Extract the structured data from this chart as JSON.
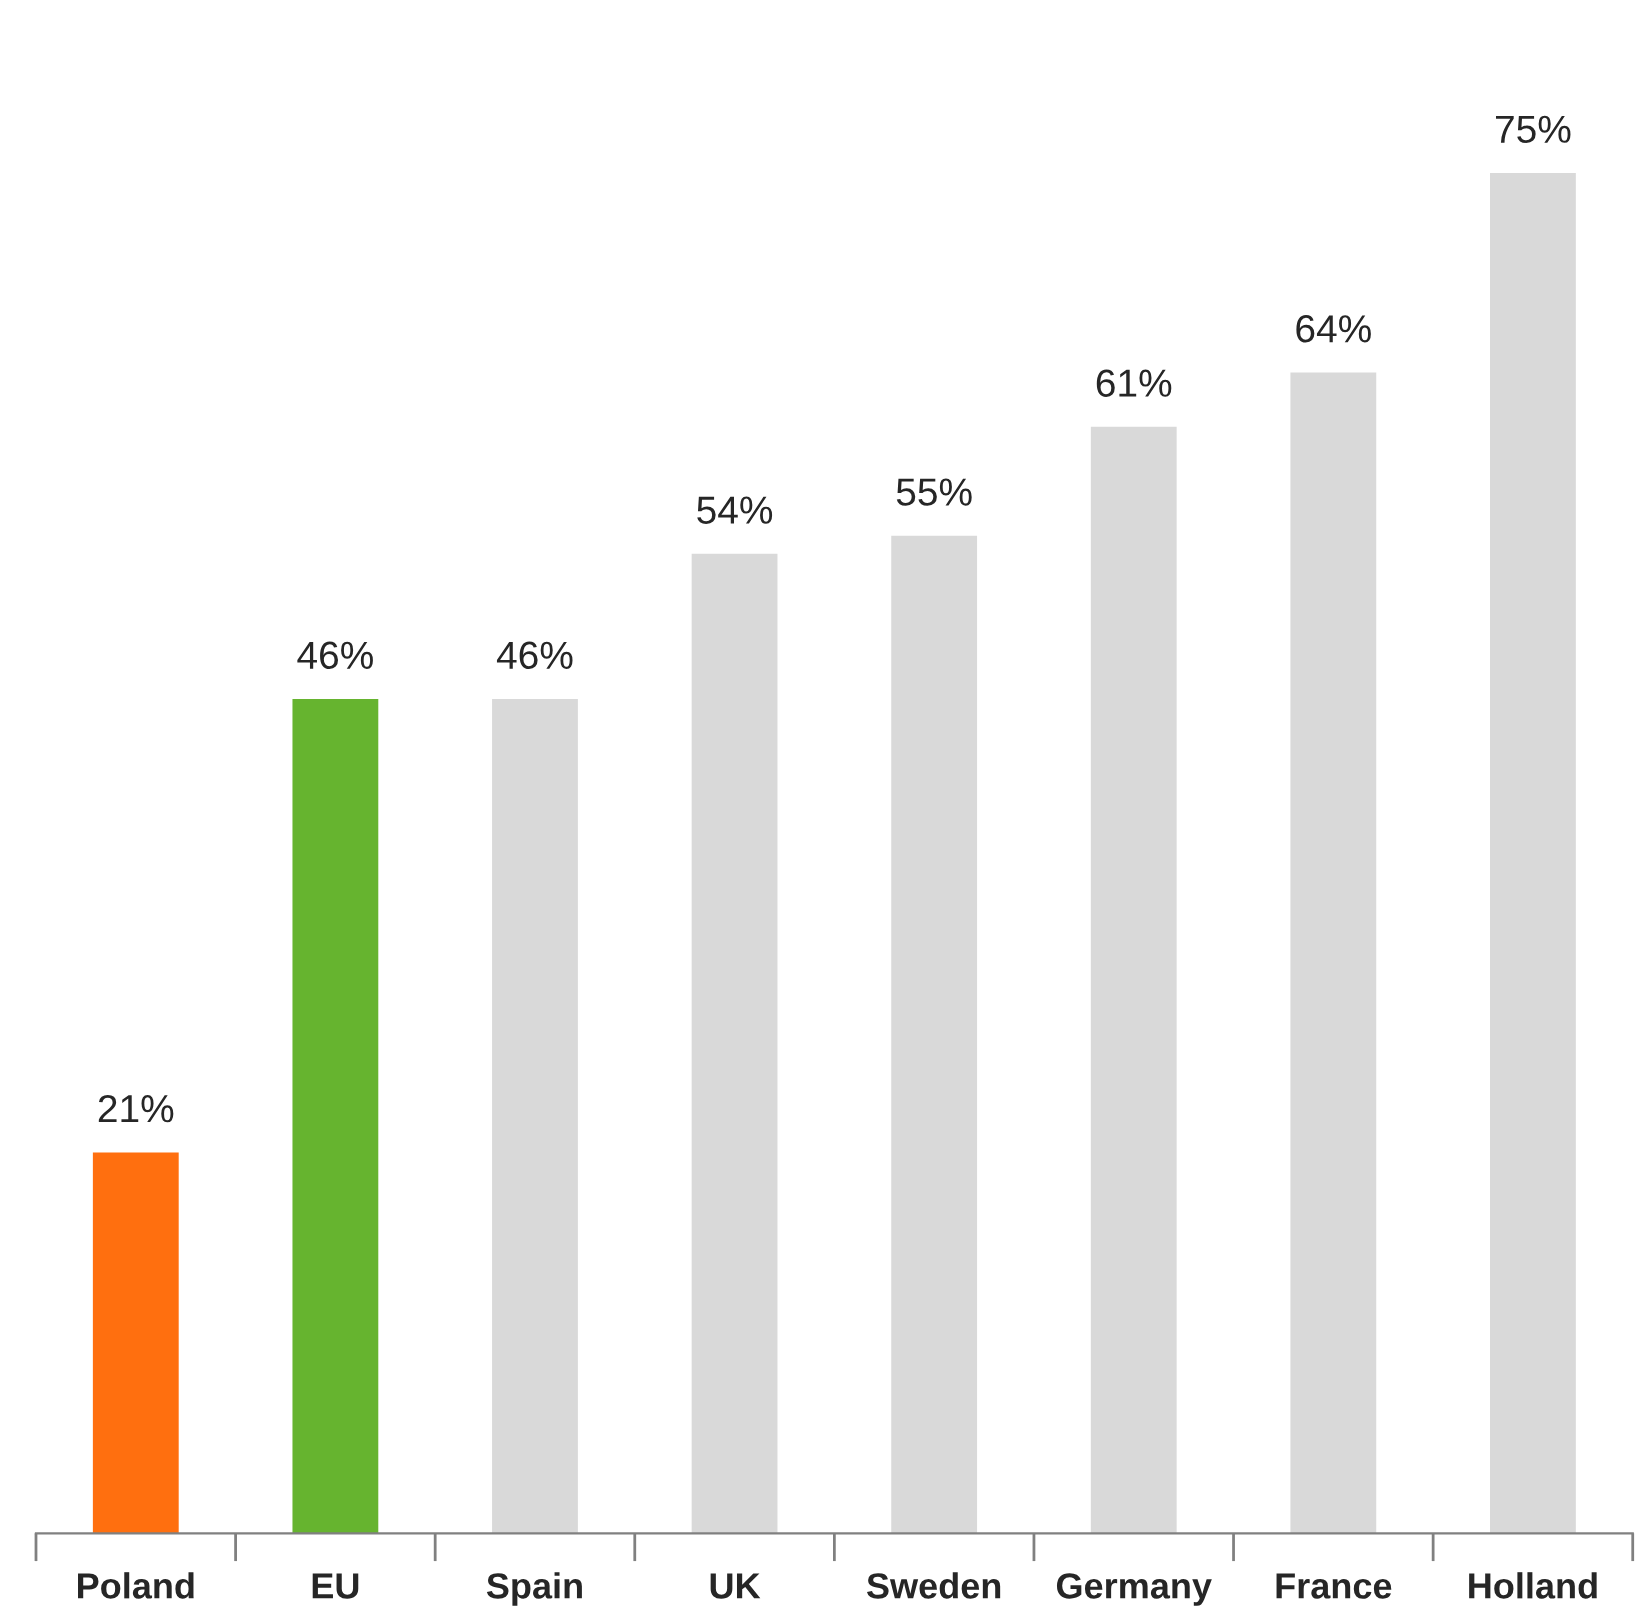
{
  "chart_data": {
    "type": "bar",
    "categories": [
      "Poland",
      "EU",
      "Spain",
      "UK",
      "Sweden",
      "Germany",
      "France",
      "Holland"
    ],
    "values": [
      21,
      46,
      46,
      54,
      55,
      61,
      64,
      75
    ],
    "colors": [
      "#ff6f0f",
      "#66b42f",
      "#d9d9d9",
      "#d9d9d9",
      "#d9d9d9",
      "#d9d9d9",
      "#d9d9d9",
      "#d9d9d9"
    ],
    "value_labels": [
      "21%",
      "46%",
      "46%",
      "54%",
      "55%",
      "61%",
      "64%",
      "75%"
    ],
    "grid": false,
    "legend": false
  }
}
